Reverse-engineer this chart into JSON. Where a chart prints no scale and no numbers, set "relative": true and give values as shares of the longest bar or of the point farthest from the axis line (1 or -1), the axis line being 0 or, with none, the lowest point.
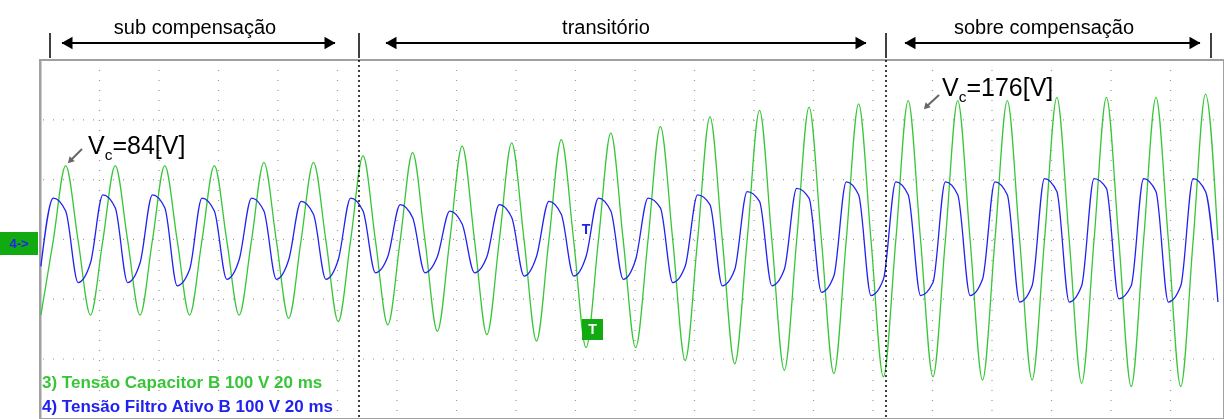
{
  "chart_data": {
    "type": "line",
    "relative": true,
    "grid": true,
    "legend": "bottom left",
    "categories": [
      null,
      null,
      null,
      null,
      null,
      null,
      null,
      null,
      null,
      null,
      null,
      null,
      null,
      null,
      null,
      null,
      null,
      null,
      null,
      null,
      null,
      null,
      null,
      null,
      null,
      null,
      null,
      null,
      null,
      null,
      null,
      null,
      null,
      null,
      null,
      null,
      null,
      null,
      null,
      null,
      null,
      null,
      null,
      null,
      null,
      null,
      null,
      null,
      null,
      null,
      null,
      null,
      null,
      null,
      null,
      null,
      null,
      null,
      null,
      null,
      null,
      null,
      null,
      null,
      null,
      null,
      null,
      null,
      null,
      null,
      null,
      null,
      null,
      null,
      null,
      null,
      null,
      null,
      null,
      null,
      null,
      null,
      null,
      null,
      null,
      null,
      null,
      null,
      null,
      null,
      null,
      null,
      null,
      null,
      null,
      null
    ],
    "series": [
      {
        "name": "3) Tensão Capacitor B  100  V   20 ms",
        "color": "#38c638",
        "values": [
          0.32,
          0.55,
          0.78,
          0.55,
          0.32,
          0.55,
          0.78,
          0.55,
          0.32,
          0.55,
          0.78,
          0.55,
          0.32,
          0.55,
          0.78,
          0.55,
          0.32,
          0.55,
          0.79,
          0.55,
          0.31,
          0.55,
          0.79,
          0.55,
          0.3,
          0.55,
          0.81,
          0.55,
          0.29,
          0.55,
          0.82,
          0.55,
          0.27,
          0.55,
          0.84,
          0.55,
          0.26,
          0.55,
          0.85,
          0.55,
          0.24,
          0.55,
          0.86,
          0.55,
          0.22,
          0.55,
          0.88,
          0.55,
          0.22,
          0.55,
          0.9,
          0.55,
          0.18,
          0.55,
          0.93,
          0.55,
          0.17,
          0.55,
          0.95,
          0.55,
          0.15,
          0.55,
          0.96,
          0.55,
          0.14,
          0.55,
          0.97,
          0.55,
          0.13,
          0.55,
          0.98,
          0.55,
          0.13,
          0.55,
          0.98,
          0.55,
          0.12,
          0.55,
          0.98,
          0.55,
          0.12,
          0.55,
          0.99,
          0.55,
          0.11,
          0.55,
          0.99,
          0.55,
          0.1,
          0.55,
          0.99,
          0.55,
          0.1,
          0.55,
          1,
          0.55
        ]
      },
      {
        "name": "4) Tensão Filtro Ativo B  100  V   20 ms",
        "color": "#2222ee",
        "values": [
          0.47,
          0.68,
          0.64,
          0.42,
          0.48,
          0.69,
          0.65,
          0.42,
          0.48,
          0.69,
          0.65,
          0.41,
          0.46,
          0.68,
          0.64,
          0.43,
          0.49,
          0.68,
          0.64,
          0.43,
          0.49,
          0.67,
          0.63,
          0.43,
          0.49,
          0.68,
          0.64,
          0.45,
          0.5,
          0.66,
          0.62,
          0.45,
          0.5,
          0.64,
          0.6,
          0.45,
          0.5,
          0.66,
          0.62,
          0.44,
          0.5,
          0.67,
          0.63,
          0.44,
          0.5,
          0.68,
          0.64,
          0.43,
          0.49,
          0.68,
          0.65,
          0.42,
          0.47,
          0.69,
          0.66,
          0.41,
          0.46,
          0.7,
          0.67,
          0.41,
          0.46,
          0.71,
          0.68,
          0.39,
          0.44,
          0.73,
          0.69,
          0.38,
          0.43,
          0.73,
          0.69,
          0.38,
          0.42,
          0.73,
          0.69,
          0.38,
          0.43,
          0.73,
          0.69,
          0.36,
          0.41,
          0.74,
          0.7,
          0.36,
          0.41,
          0.74,
          0.71,
          0.37,
          0.41,
          0.74,
          0.7,
          0.36,
          0.41,
          0.74,
          0.7,
          0.36
        ]
      }
    ],
    "annotations": [
      "sub compensação",
      "transitório",
      "sobre compensação",
      "V$_{c}$=84[V]",
      "V$_{c}$=176[V]",
      "4->",
      "T",
      "T"
    ]
  }
}
